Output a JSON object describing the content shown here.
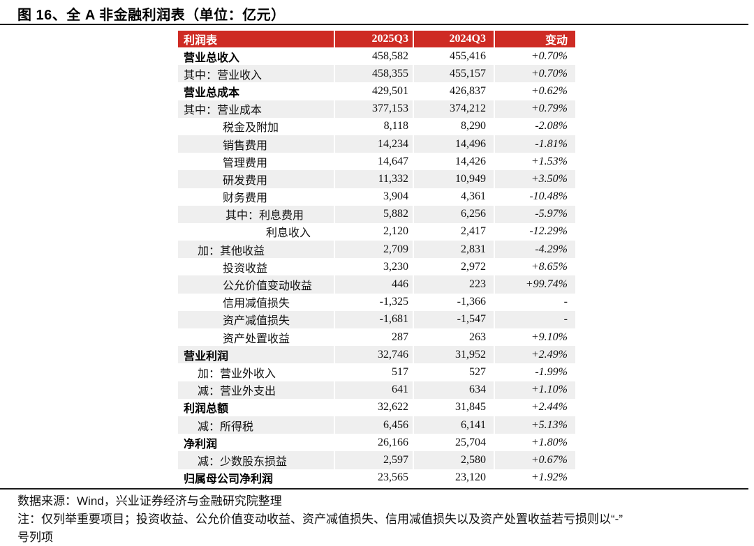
{
  "figure": {
    "title": "图 16、全 A 非金融利润表（单位：亿元）"
  },
  "colors": {
    "header_bg": "#CE2B24",
    "alt_row_bg": "#EFEFEF"
  },
  "table": {
    "columns": [
      "利润表",
      "2025Q3",
      "2024Q3",
      "变动"
    ],
    "rows": [
      {
        "label": "营业总收入",
        "q2025": "458,582",
        "q2024": "455,416",
        "change": "+0.70%",
        "bold": true,
        "indent": 0
      },
      {
        "label": "其中：营业收入",
        "q2025": "458,355",
        "q2024": "455,157",
        "change": "+0.70%",
        "bold": false,
        "indent": 0
      },
      {
        "label": "营业总成本",
        "q2025": "429,501",
        "q2024": "426,837",
        "change": "+0.62%",
        "bold": true,
        "indent": 0
      },
      {
        "label": "其中：营业成本",
        "q2025": "377,153",
        "q2024": "374,212",
        "change": "+0.79%",
        "bold": false,
        "indent": 0
      },
      {
        "label": "税金及附加",
        "q2025": "8,118",
        "q2024": "8,290",
        "change": "-2.08%",
        "bold": false,
        "indent": 56
      },
      {
        "label": "销售费用",
        "q2025": "14,234",
        "q2024": "14,496",
        "change": "-1.81%",
        "bold": false,
        "indent": 56
      },
      {
        "label": "管理费用",
        "q2025": "14,647",
        "q2024": "14,426",
        "change": "+1.53%",
        "bold": false,
        "indent": 56
      },
      {
        "label": "研发费用",
        "q2025": "11,332",
        "q2024": "10,949",
        "change": "+3.50%",
        "bold": false,
        "indent": 56
      },
      {
        "label": "财务费用",
        "q2025": "3,904",
        "q2024": "4,361",
        "change": "-10.48%",
        "bold": false,
        "indent": 56
      },
      {
        "label": "其中：利息费用",
        "q2025": "5,882",
        "q2024": "6,256",
        "change": "-5.97%",
        "bold": false,
        "indent": 60
      },
      {
        "label": "利息收入",
        "q2025": "2,120",
        "q2024": "2,417",
        "change": "-12.29%",
        "bold": false,
        "indent": 118
      },
      {
        "label": "加：其他收益",
        "q2025": "2,709",
        "q2024": "2,831",
        "change": "-4.29%",
        "bold": false,
        "indent": 20
      },
      {
        "label": "投资收益",
        "q2025": "3,230",
        "q2024": "2,972",
        "change": "+8.65%",
        "bold": false,
        "indent": 56
      },
      {
        "label": "公允价值变动收益",
        "q2025": "446",
        "q2024": "223",
        "change": "+99.74%",
        "bold": false,
        "indent": 56
      },
      {
        "label": "信用减值损失",
        "q2025": "-1,325",
        "q2024": "-1,366",
        "change": "-",
        "bold": false,
        "indent": 56
      },
      {
        "label": "资产减值损失",
        "q2025": "-1,681",
        "q2024": "-1,547",
        "change": "-",
        "bold": false,
        "indent": 56
      },
      {
        "label": "资产处置收益",
        "q2025": "287",
        "q2024": "263",
        "change": "+9.10%",
        "bold": false,
        "indent": 56
      },
      {
        "label": "营业利润",
        "q2025": "32,746",
        "q2024": "31,952",
        "change": "+2.49%",
        "bold": true,
        "indent": 0
      },
      {
        "label": "加：营业外收入",
        "q2025": "517",
        "q2024": "527",
        "change": "-1.99%",
        "bold": false,
        "indent": 20
      },
      {
        "label": "减：营业外支出",
        "q2025": "641",
        "q2024": "634",
        "change": "+1.10%",
        "bold": false,
        "indent": 20
      },
      {
        "label": "利润总额",
        "q2025": "32,622",
        "q2024": "31,845",
        "change": "+2.44%",
        "bold": true,
        "indent": 0
      },
      {
        "label": "减：所得税",
        "q2025": "6,456",
        "q2024": "6,141",
        "change": "+5.13%",
        "bold": false,
        "indent": 20
      },
      {
        "label": "净利润",
        "q2025": "26,166",
        "q2024": "25,704",
        "change": "+1.80%",
        "bold": true,
        "indent": 0
      },
      {
        "label": "减：少数股东损益",
        "q2025": "2,597",
        "q2024": "2,580",
        "change": "+0.67%",
        "bold": false,
        "indent": 20
      },
      {
        "label": "归属母公司净利润",
        "q2025": "23,565",
        "q2024": "23,120",
        "change": "+1.92%",
        "bold": true,
        "indent": 0
      }
    ]
  },
  "footer": {
    "source": "数据来源：Wind，兴业证券经济与金融研究院整理",
    "note_line1": "注：仅列举重要项目；投资收益、公允价值变动收益、资产减值损失、信用减值损失以及资产处置收益若亏损则以“-”",
    "note_line2": "号列项"
  }
}
